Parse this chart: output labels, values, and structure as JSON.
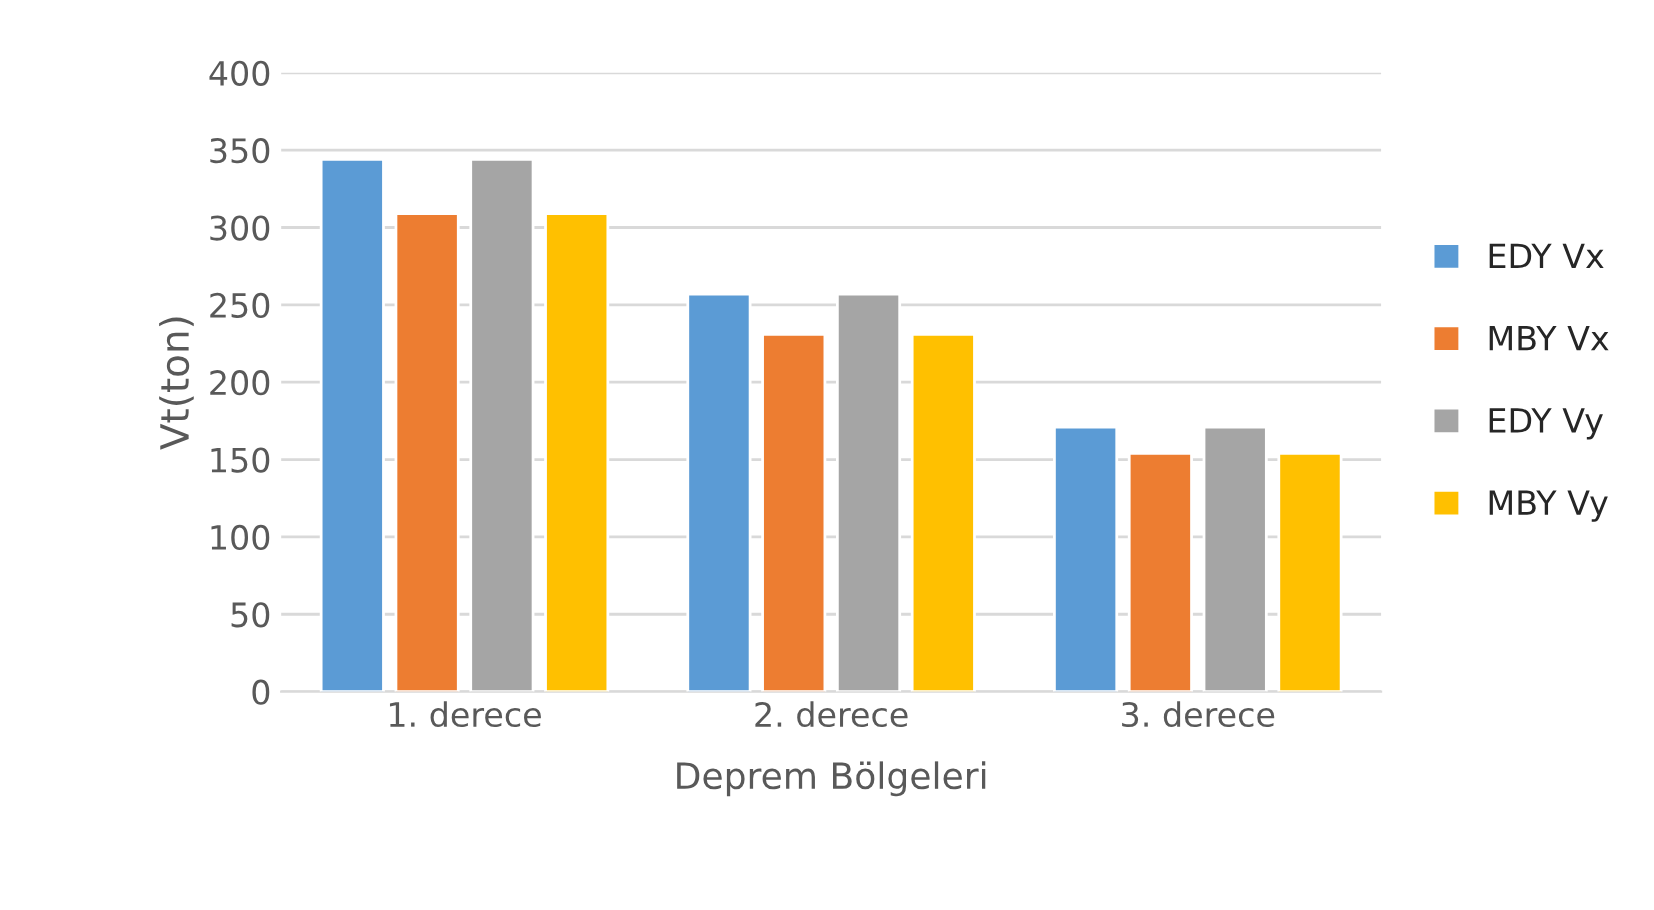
{
  "chart_data": {
    "type": "bar",
    "xlabel": "Deprem Bölgeleri",
    "ylabel": "Vt(ton)",
    "categories": [
      "1. derece",
      "2. derece",
      "3. derece"
    ],
    "series": [
      {
        "name": "EDY Vx",
        "color": "#5b9bd5",
        "values": [
          344,
          257,
          171
        ]
      },
      {
        "name": "MBY Vx",
        "color": "#ed7d31",
        "values": [
          309,
          231,
          154
        ]
      },
      {
        "name": "EDY Vy",
        "color": "#a5a5a5",
        "values": [
          344,
          257,
          171
        ]
      },
      {
        "name": "MBY Vy",
        "color": "#ffc000",
        "values": [
          309,
          231,
          154
        ]
      }
    ],
    "ylim": [
      0,
      400
    ],
    "yticks": [
      0,
      50,
      100,
      150,
      200,
      250,
      300,
      350,
      400
    ],
    "grid": "y",
    "legend": "right"
  }
}
